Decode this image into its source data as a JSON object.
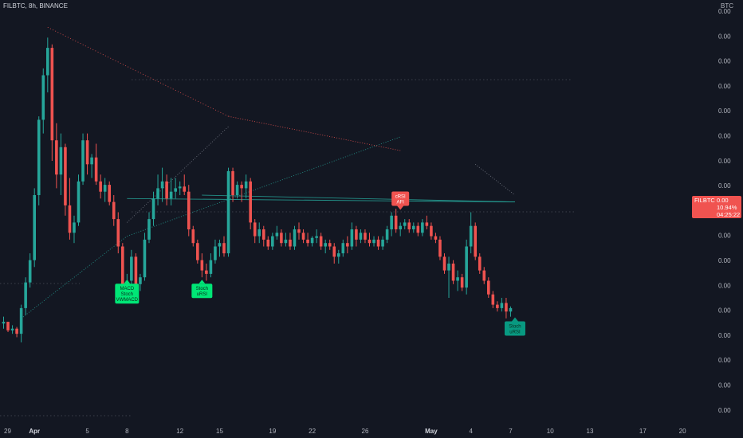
{
  "header": {
    "title": "FILBTC, 8h, BINANCE",
    "currency": "BTC"
  },
  "price_tag": {
    "symbol": "FILBTC",
    "price": "0.00",
    "change": "10.94%",
    "countdown": "04:25:22"
  },
  "colors": {
    "up": "#26a69a",
    "down": "#ef5350",
    "bull_signal": "#00e676",
    "bear_signal": "#f05350",
    "background": "#131722"
  },
  "chart_data": {
    "type": "candlestick",
    "title": "FILBTC, 8h, BINANCE",
    "xlabel": "",
    "ylabel": "BTC",
    "ylim": [
      0,
      100
    ],
    "grid": false,
    "x_ticks": [
      {
        "label": "29",
        "bar": -16,
        "bold": false
      },
      {
        "label": "Apr",
        "bar": 7,
        "bold": true
      },
      {
        "label": "5",
        "bar": 19,
        "bold": false
      },
      {
        "label": "8",
        "bar": 28,
        "bold": false
      },
      {
        "label": "12",
        "bar": 40,
        "bold": false
      },
      {
        "label": "15",
        "bar": 49,
        "bold": false
      },
      {
        "label": "19",
        "bar": 61,
        "bold": false
      },
      {
        "label": "22",
        "bar": 70,
        "bold": false
      },
      {
        "label": "26",
        "bar": 82,
        "bold": false
      },
      {
        "label": "May",
        "bar": 97,
        "bold": true
      },
      {
        "label": "4",
        "bar": 106,
        "bold": false
      },
      {
        "label": "7",
        "bar": 115,
        "bold": false
      },
      {
        "label": "10",
        "bar": 124,
        "bold": false
      },
      {
        "label": "13",
        "bar": 133,
        "bold": false
      },
      {
        "label": "17",
        "bar": 145,
        "bold": false
      },
      {
        "label": "20",
        "bar": 154,
        "bold": false
      }
    ],
    "y_ticks": [
      "0.00",
      "0.00",
      "0.00",
      "0.00",
      "0.00",
      "0.00",
      "0.00",
      "0.00",
      "0.00",
      "0.00",
      "0.00",
      "0.00",
      "0.00",
      "0.00",
      "0.00",
      "0.00",
      "0.00"
    ],
    "candles": [
      [
        12.5,
        14.5,
        11,
        13
      ],
      [
        13,
        13,
        10,
        10.5
      ],
      [
        10.5,
        12,
        9.5,
        11
      ],
      [
        11,
        11.5,
        8.5,
        9.5
      ],
      [
        9.5,
        18,
        7,
        17
      ],
      [
        17,
        26,
        15,
        24.5
      ],
      [
        24.5,
        33,
        23,
        31
      ],
      [
        31,
        52,
        29,
        50
      ],
      [
        50,
        73,
        47,
        72
      ],
      [
        72,
        87,
        68,
        85
      ],
      [
        85,
        96,
        80,
        93
      ],
      [
        93,
        94,
        60,
        66
      ],
      [
        66,
        71,
        52,
        56
      ],
      [
        56,
        68,
        50,
        64
      ],
      [
        64,
        65,
        44,
        47
      ],
      [
        47,
        55,
        37,
        39
      ],
      [
        39,
        44,
        36,
        42
      ],
      [
        42,
        56,
        41,
        54
      ],
      [
        54,
        68,
        53,
        66
      ],
      [
        66,
        68,
        56,
        59
      ],
      [
        59,
        62,
        55,
        61
      ],
      [
        61,
        65,
        53,
        54
      ],
      [
        54,
        56,
        49,
        51
      ],
      [
        51,
        55,
        48,
        53
      ],
      [
        53,
        54,
        47,
        48
      ],
      [
        48,
        50,
        41,
        43
      ],
      [
        43,
        45,
        33,
        35
      ],
      [
        35,
        36,
        22,
        24
      ],
      [
        24,
        27,
        20,
        25
      ],
      [
        25,
        34,
        23,
        32
      ],
      [
        32,
        33,
        22,
        24
      ],
      [
        24,
        27,
        22,
        26
      ],
      [
        26,
        39,
        25,
        37
      ],
      [
        37,
        45,
        36,
        43
      ],
      [
        43,
        51,
        41,
        49
      ],
      [
        49,
        56,
        47,
        52
      ],
      [
        52,
        58,
        48,
        54
      ],
      [
        54,
        56,
        47,
        49
      ],
      [
        49,
        55,
        47,
        51
      ],
      [
        51,
        55,
        49,
        52
      ],
      [
        52,
        54,
        50,
        52.5
      ],
      [
        52.5,
        56,
        50,
        51
      ],
      [
        51,
        53,
        38,
        40
      ],
      [
        40,
        41,
        35,
        36
      ],
      [
        36,
        37,
        30,
        31
      ],
      [
        31,
        33,
        26,
        28
      ],
      [
        28,
        30,
        25,
        27
      ],
      [
        27,
        33,
        26,
        31
      ],
      [
        31,
        37,
        30,
        35
      ],
      [
        35,
        37,
        32,
        36
      ],
      [
        36,
        38,
        32,
        33
      ],
      [
        33,
        58,
        32,
        57
      ],
      [
        57,
        58,
        48,
        50
      ],
      [
        50,
        54,
        49,
        53
      ],
      [
        53,
        54,
        48,
        52
      ],
      [
        52,
        56,
        49,
        54
      ],
      [
        54,
        55,
        40,
        42
      ],
      [
        42,
        43,
        36,
        38
      ],
      [
        38,
        42,
        36,
        40
      ],
      [
        40,
        41,
        35,
        37
      ],
      [
        37,
        38,
        34,
        35
      ],
      [
        35,
        39,
        34,
        38
      ],
      [
        38,
        41,
        37,
        39
      ],
      [
        39,
        40,
        35,
        36
      ],
      [
        36,
        39,
        35,
        37
      ],
      [
        37,
        39,
        34,
        35
      ],
      [
        35,
        41,
        34,
        40
      ],
      [
        40,
        42,
        37,
        39
      ],
      [
        39,
        40,
        36,
        37
      ],
      [
        37,
        39,
        35,
        36
      ],
      [
        36,
        38,
        35,
        37.5
      ],
      [
        37.5,
        40,
        36,
        38
      ],
      [
        38,
        39,
        34,
        35
      ],
      [
        35,
        37,
        33,
        36
      ],
      [
        36,
        37,
        34,
        35
      ],
      [
        35,
        36,
        30,
        32
      ],
      [
        32,
        34,
        30,
        33
      ],
      [
        33,
        37,
        32,
        36
      ],
      [
        36,
        38,
        33,
        35
      ],
      [
        35,
        42,
        34,
        40
      ],
      [
        40,
        41,
        35,
        37
      ],
      [
        37,
        40,
        36,
        39
      ],
      [
        39,
        40,
        36,
        37
      ],
      [
        37,
        39,
        35,
        36
      ],
      [
        36,
        38,
        35,
        37
      ],
      [
        37,
        38,
        34,
        35
      ],
      [
        35,
        38,
        34,
        37
      ],
      [
        37,
        41,
        36,
        40
      ],
      [
        40,
        45,
        38,
        44
      ],
      [
        44,
        46,
        39,
        40
      ],
      [
        40,
        42,
        38,
        41
      ],
      [
        41,
        43,
        40,
        42
      ],
      [
        42,
        43,
        39,
        40
      ],
      [
        40,
        42,
        39,
        41
      ],
      [
        41,
        42,
        38,
        39
      ],
      [
        39,
        43,
        38,
        42
      ],
      [
        42,
        44,
        40,
        41
      ],
      [
        41,
        42,
        37,
        38
      ],
      [
        38,
        39,
        36,
        37
      ],
      [
        37,
        38,
        31,
        32
      ],
      [
        32,
        33,
        27,
        28
      ],
      [
        28,
        32,
        20,
        30
      ],
      [
        30,
        31,
        24,
        25
      ],
      [
        25,
        28,
        22,
        26
      ],
      [
        26,
        27,
        22,
        23
      ],
      [
        23,
        37,
        21,
        35
      ],
      [
        35,
        45,
        33,
        41
      ],
      [
        41,
        42,
        31,
        32
      ],
      [
        32,
        33,
        27,
        28
      ],
      [
        28,
        29,
        24,
        25
      ],
      [
        25,
        26,
        20,
        21
      ],
      [
        21,
        22,
        17,
        18
      ],
      [
        18,
        19,
        16,
        17
      ],
      [
        17,
        20,
        16,
        18.5
      ],
      [
        18.5,
        20,
        14,
        16
      ],
      [
        16,
        17.5,
        14.5,
        17
      ]
    ],
    "signals": [
      {
        "type": "bull",
        "bar": 28,
        "value": 26,
        "lines": [
          "MACD",
          "Stoch",
          "VWMACD"
        ]
      },
      {
        "type": "bull",
        "bar": 45,
        "value": 26,
        "lines": [
          "Stoch",
          "uRSI"
        ]
      },
      {
        "type": "bear",
        "bar": 90,
        "value": 45,
        "lines": [
          "cRSI",
          "AFI"
        ]
      },
      {
        "type": "bull",
        "bar": 116,
        "value": 15,
        "lines": [
          "Stoch",
          "uRSI"
        ]
      }
    ]
  }
}
